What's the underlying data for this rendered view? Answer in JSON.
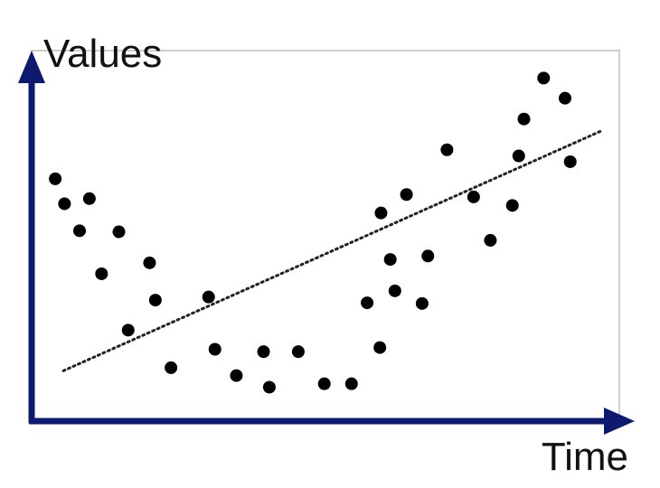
{
  "chart_data": {
    "type": "scatter",
    "title": "",
    "xlabel": "Time",
    "ylabel": "Values",
    "xlim": [
      0,
      100
    ],
    "ylim": [
      0,
      100
    ],
    "grid": false,
    "legend": "none",
    "series": [
      {
        "points": [
          [
            3.3,
            66.7
          ],
          [
            4.9,
            59.4
          ],
          [
            7.5,
            51.5
          ],
          [
            9.2,
            60.9
          ],
          [
            11.3,
            38.9
          ],
          [
            14.3,
            51.2
          ],
          [
            15.9,
            22.4
          ],
          [
            19.6,
            42.1
          ],
          [
            20.6,
            31.2
          ],
          [
            23.3,
            11.4
          ],
          [
            29.8,
            32.1
          ],
          [
            30.9,
            16.8
          ],
          [
            34.6,
            9.1
          ],
          [
            39.3,
            16.1
          ],
          [
            40.3,
            5.7
          ],
          [
            45.3,
            16.1
          ],
          [
            49.8,
            6.7
          ],
          [
            54.5,
            6.7
          ],
          [
            57.2,
            30.4
          ],
          [
            59.4,
            17.3
          ],
          [
            59.6,
            56.7
          ],
          [
            61.2,
            43.1
          ],
          [
            62.0,
            33.9
          ],
          [
            64.0,
            62.1
          ],
          [
            66.7,
            30.2
          ],
          [
            67.7,
            44.1
          ],
          [
            71.0,
            75.2
          ],
          [
            75.6,
            61.4
          ],
          [
            78.5,
            48.7
          ],
          [
            82.3,
            58.9
          ],
          [
            83.4,
            73.4
          ],
          [
            84.3,
            84.2
          ],
          [
            87.7,
            96.2
          ],
          [
            91.4,
            90.3
          ],
          [
            92.3,
            71.7
          ]
        ]
      }
    ],
    "trendline": {
      "style": "dotted",
      "from": [
        4.7,
        10.5
      ],
      "to": [
        97.9,
        80.9
      ]
    },
    "colors": {
      "axis": "#0d1b6e",
      "points": "#000000",
      "frame": "#cfcfcf",
      "trend": "#222222"
    }
  }
}
